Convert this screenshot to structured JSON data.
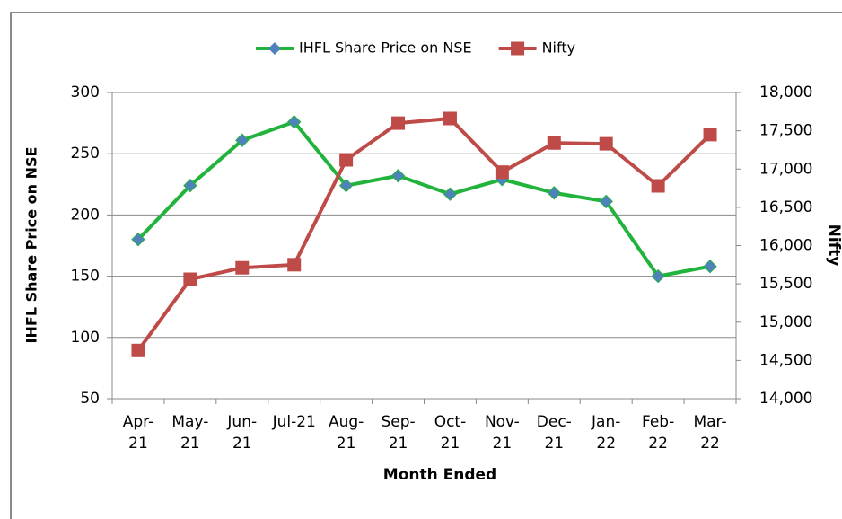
{
  "chart_data": {
    "type": "line",
    "categories": [
      "Apr-21",
      "May-21",
      "Jun-21",
      "Jul-21",
      "Aug-21",
      "Sep-21",
      "Oct-21",
      "Nov-21",
      "Dec-21",
      "Jan-22",
      "Feb-22",
      "Mar-22"
    ],
    "series": [
      {
        "name": "IHFL Share Price on NSE",
        "color": "#22b33c",
        "marker": "diamond",
        "marker_color": "#4f81bd",
        "values": [
          180,
          224,
          261,
          276,
          224,
          232,
          217,
          229,
          218,
          211,
          150,
          158
        ]
      },
      {
        "name": "Nifty",
        "color": "#be4b48",
        "marker": "square",
        "marker_color": "#be4b48",
        "axis": "y2",
        "values": [
          14630,
          15560,
          15710,
          15750,
          17120,
          17600,
          17660,
          16960,
          17340,
          17330,
          16780,
          17450
        ]
      }
    ],
    "xlabel": "Month Ended",
    "ylabel": "IHFL Share Price on NSE",
    "y2label": "Nifty",
    "ylim": [
      50,
      300
    ],
    "yticks": [
      50,
      100,
      150,
      200,
      250,
      300
    ],
    "y2lim": [
      14000,
      18000
    ],
    "y2ticks": [
      {
        "value": 14000,
        "label": "14,000"
      },
      {
        "value": 14500,
        "label": "14,500"
      },
      {
        "value": 15000,
        "label": "15,000"
      },
      {
        "value": 15500,
        "label": "15,500"
      },
      {
        "value": 16000,
        "label": "16,000"
      },
      {
        "value": 16500,
        "label": "16,500"
      },
      {
        "value": 17000,
        "label": "17,000"
      },
      {
        "value": 17500,
        "label": "17,500"
      },
      {
        "value": 18000,
        "label": "18,000"
      }
    ],
    "grid": true,
    "legend": "top"
  }
}
